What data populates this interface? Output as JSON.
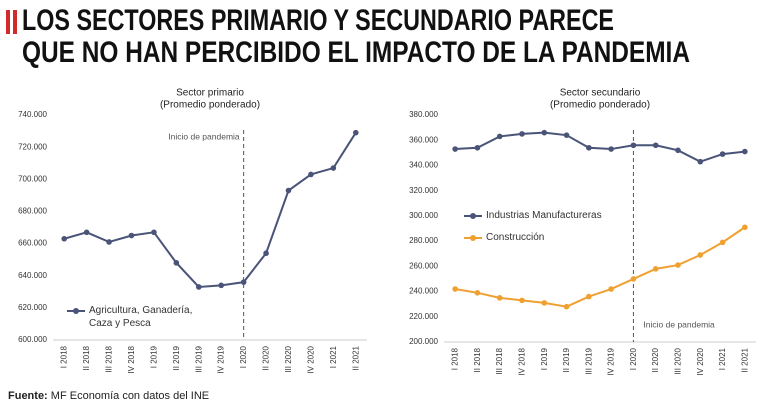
{
  "header": {
    "title": [
      "LOS SECTORES PRIMARIO Y SECUNDARIO PARECE",
      "QUE NO HAN PERCIBIDO EL IMPACTO DE LA PANDEMIA"
    ]
  },
  "chart_data": [
    {
      "type": "line",
      "title": "Sector primario",
      "subtitle": "(Promedio ponderado)",
      "categories": [
        "I 2018",
        "II 2018",
        "III 2018",
        "IV 2018",
        "I 2019",
        "II 2019",
        "III 2019",
        "IV 2019",
        "I 2020",
        "II 2020",
        "III 2020",
        "IV 2020",
        "I 2021",
        "II 2021"
      ],
      "series": [
        {
          "name": "Agricultura, Ganadería, Caza y Pesca",
          "color": "#4a5378",
          "values": [
            663000,
            667000,
            661000,
            665000,
            667000,
            648000,
            633000,
            634000,
            636000,
            654000,
            693000,
            703000,
            707000,
            729000
          ]
        }
      ],
      "ylim": [
        600000,
        740000
      ],
      "yticks": [
        {
          "value": 600000,
          "label": "600.000"
        },
        {
          "value": 620000,
          "label": "620.000"
        },
        {
          "value": 640000,
          "label": "640.000"
        },
        {
          "value": 660000,
          "label": "660.000"
        },
        {
          "value": 680000,
          "label": "680.000"
        },
        {
          "value": 700000,
          "label": "700.000"
        },
        {
          "value": 720000,
          "label": "720.000"
        },
        {
          "value": 740000,
          "label": "740.000"
        }
      ],
      "annotation": {
        "text": "Inicio de pandemia",
        "x": "I 2020",
        "position": "top"
      },
      "legend": "lower left"
    },
    {
      "type": "line",
      "title": "Sector secundario",
      "subtitle": "(Promedio ponderado)",
      "categories": [
        "I 2018",
        "II 2018",
        "III 2018",
        "IV 2018",
        "I 2019",
        "II 2019",
        "III 2019",
        "IV 2019",
        "I 2020",
        "II 2020",
        "III 2020",
        "IV 2020",
        "I 2021",
        "II 2021"
      ],
      "series": [
        {
          "name": "Industrias Manufactureras",
          "color": "#4a5378",
          "values": [
            353000,
            354000,
            363000,
            365000,
            366000,
            364000,
            354000,
            353000,
            356000,
            356000,
            352000,
            343000,
            349000,
            351000
          ]
        },
        {
          "name": "Construcción",
          "color": "#f0a030",
          "values": [
            242000,
            239000,
            235000,
            233000,
            231000,
            228000,
            236000,
            242000,
            250000,
            258000,
            261000,
            269000,
            279000,
            291000
          ]
        }
      ],
      "ylim": [
        200000,
        380000
      ],
      "yticks": [
        {
          "value": 200000,
          "label": "200.000"
        },
        {
          "value": 220000,
          "label": "220.000"
        },
        {
          "value": 240000,
          "label": "240.000"
        },
        {
          "value": 260000,
          "label": "260.000"
        },
        {
          "value": 280000,
          "label": "280.000"
        },
        {
          "value": 300000,
          "label": "300.000"
        },
        {
          "value": 320000,
          "label": "320.000"
        },
        {
          "value": 340000,
          "label": "340.000"
        },
        {
          "value": 360000,
          "label": "360.000"
        },
        {
          "value": 380000,
          "label": "380.000"
        }
      ],
      "annotation": {
        "text": "Inicio de pandemia",
        "x": "I 2020",
        "position": "bottom"
      },
      "legend": "upper left"
    }
  ],
  "source": {
    "label": "Fuente:",
    "text": "MF Economía con datos del INE"
  }
}
